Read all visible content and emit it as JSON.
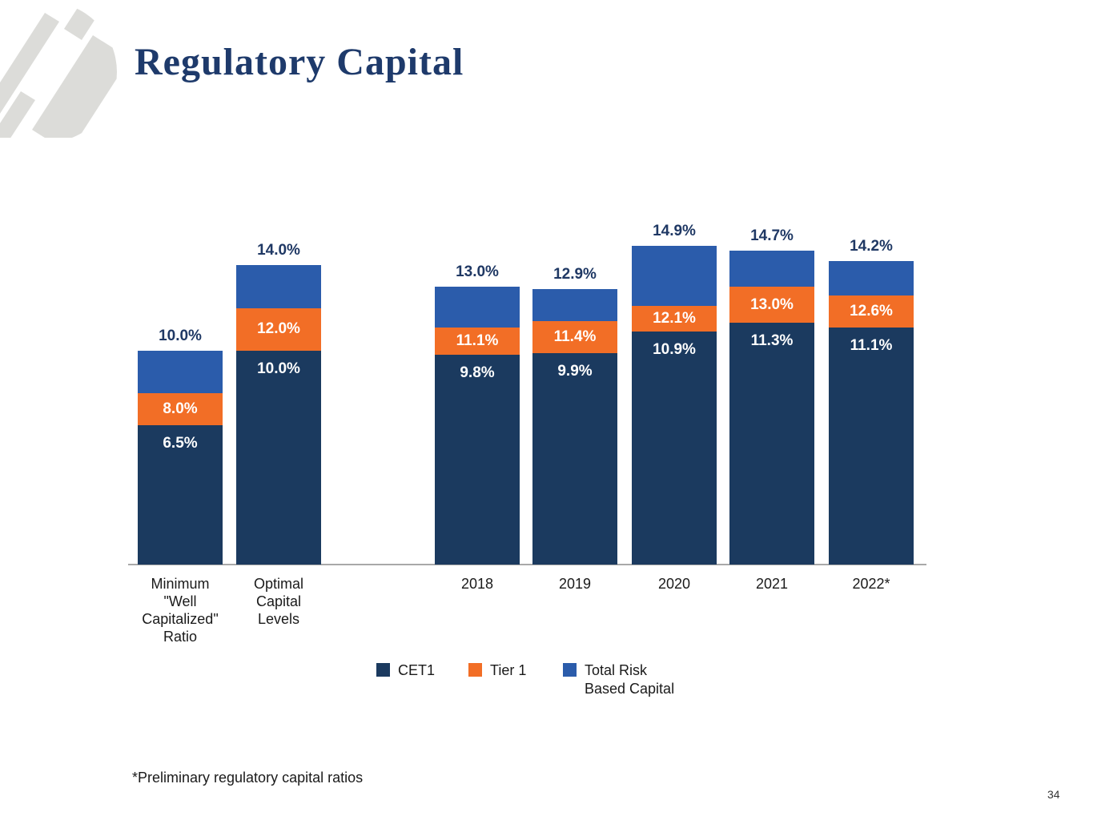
{
  "slide": {
    "title": "Regulatory Capital",
    "footnote": "*Preliminary regulatory capital ratios",
    "page_number": "34"
  },
  "colors": {
    "cet1": "#1b3a5f",
    "tier1": "#f26e26",
    "total_risk": "#2b5cab",
    "title_text": "#1e3a6b",
    "data_label_dark": "#1f3864",
    "data_label_light": "#ffffff",
    "axis_line": "#a9a9a9",
    "logo_gray": "#dcdcd9"
  },
  "chart_data": {
    "type": "bar",
    "stacked": true,
    "title": "",
    "xlabel": "",
    "ylabel": "",
    "unit": "%",
    "ylim": [
      0,
      16
    ],
    "gridlines": false,
    "legend_position": "bottom",
    "categories": [
      "Minimum \"Well Capitalized\" Ratio",
      "Optimal Capital Levels",
      "2018",
      "2019",
      "2020",
      "2021",
      "2022*"
    ],
    "category_labels_display": [
      "Minimum\n\"Well\nCapitalized\"\nRatio",
      "Optimal\nCapital\nLevels",
      "2018",
      "2019",
      "2020",
      "2021",
      "2022*"
    ],
    "series": [
      {
        "name": "CET1",
        "color": "#1b3a5f",
        "values": [
          6.5,
          10.0,
          9.8,
          9.9,
          10.9,
          11.3,
          11.1
        ]
      },
      {
        "name": "Tier 1",
        "color": "#f26e26",
        "values": [
          8.0,
          12.0,
          11.1,
          11.4,
          12.1,
          13.0,
          12.6
        ]
      },
      {
        "name": "Total Risk Based Capital",
        "color": "#2b5cab",
        "values": [
          10.0,
          14.0,
          13.0,
          12.9,
          14.9,
          14.7,
          14.2
        ]
      }
    ],
    "labels": {
      "cet1": [
        "6.5%",
        "10.0%",
        "9.8%",
        "9.9%",
        "10.9%",
        "11.3%",
        "11.1%"
      ],
      "tier1": [
        "8.0%",
        "12.0%",
        "11.1%",
        "11.4%",
        "12.1%",
        "13.0%",
        "12.6%"
      ],
      "total": [
        "10.0%",
        "14.0%",
        "13.0%",
        "12.9%",
        "14.9%",
        "14.7%",
        "14.2%"
      ]
    }
  },
  "legend": {
    "items": [
      {
        "label": "CET1",
        "color": "#1b3a5f"
      },
      {
        "label": "Tier 1",
        "color": "#f26e26"
      },
      {
        "label": "Total Risk\nBased Capital",
        "color": "#2b5cab"
      }
    ]
  }
}
